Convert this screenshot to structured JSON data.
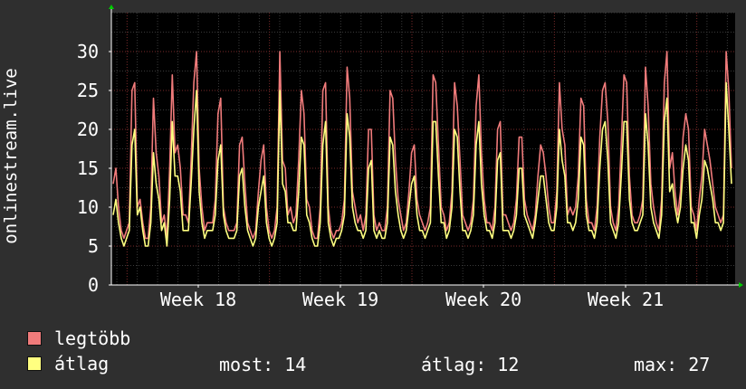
{
  "chart_data": {
    "type": "line",
    "ylabel": "onlinestream.live",
    "ylim": [
      0,
      35
    ],
    "yticks": [
      0,
      5,
      10,
      15,
      20,
      25,
      30
    ],
    "xticks": [
      "Week 18",
      "Week 19",
      "Week 20",
      "Week 21"
    ],
    "grid": true,
    "series": [
      {
        "name": "legtöbb",
        "color": "#f07b7b",
        "values": [
          13,
          15,
          10,
          7,
          6,
          7,
          8,
          25,
          26,
          10,
          11,
          8,
          6,
          6,
          10,
          24,
          17,
          14,
          8,
          9,
          6,
          15,
          27,
          17,
          18,
          15,
          9,
          9,
          8,
          16,
          26,
          30,
          15,
          10,
          7,
          8,
          8,
          8,
          11,
          22,
          24,
          10,
          8,
          7,
          7,
          7,
          8,
          18,
          19,
          13,
          8,
          7,
          6,
          7,
          12,
          16,
          18,
          10,
          7,
          6,
          7,
          10,
          30,
          16,
          15,
          9,
          10,
          8,
          9,
          16,
          25,
          22,
          11,
          10,
          7,
          6,
          6,
          10,
          25,
          26,
          10,
          7,
          6,
          7,
          7,
          8,
          11,
          28,
          24,
          12,
          10,
          8,
          9,
          7,
          9,
          20,
          20,
          9,
          7,
          8,
          7,
          7,
          10,
          25,
          24,
          16,
          11,
          9,
          7,
          8,
          12,
          17,
          18,
          11,
          9,
          8,
          7,
          8,
          10,
          27,
          26,
          18,
          10,
          9,
          7,
          8,
          12,
          26,
          23,
          16,
          9,
          8,
          7,
          8,
          11,
          23,
          27,
          17,
          11,
          8,
          8,
          7,
          10,
          20,
          21,
          9,
          9,
          8,
          7,
          8,
          11,
          19,
          19,
          11,
          9,
          8,
          7,
          9,
          14,
          18,
          17,
          14,
          10,
          8,
          8,
          12,
          26,
          20,
          18,
          9,
          10,
          9,
          10,
          14,
          24,
          23,
          11,
          8,
          8,
          7,
          10,
          19,
          25,
          26,
          21,
          10,
          8,
          7,
          10,
          18,
          27,
          26,
          14,
          9,
          8,
          8,
          9,
          11,
          28,
          23,
          13,
          10,
          8,
          7,
          11,
          26,
          30,
          15,
          17,
          12,
          9,
          12,
          19,
          22,
          20,
          10,
          9,
          7,
          11,
          14,
          20,
          18,
          16,
          13,
          10,
          9,
          8,
          9,
          30,
          25,
          15
        ]
      },
      {
        "name": "átlag",
        "color": "#ffff80",
        "values": [
          9,
          11,
          8,
          6,
          5,
          6,
          7,
          18,
          20,
          9,
          10,
          7,
          5,
          5,
          8,
          17,
          13,
          11,
          7,
          8,
          5,
          11,
          21,
          14,
          14,
          12,
          7,
          7,
          7,
          13,
          20,
          25,
          12,
          8,
          6,
          7,
          7,
          7,
          9,
          16,
          18,
          9,
          7,
          6,
          6,
          6,
          7,
          14,
          15,
          10,
          7,
          6,
          5,
          6,
          10,
          12,
          14,
          8,
          6,
          5,
          6,
          8,
          25,
          13,
          12,
          8,
          8,
          7,
          7,
          12,
          19,
          18,
          9,
          8,
          6,
          5,
          5,
          8,
          18,
          21,
          8,
          6,
          5,
          6,
          6,
          7,
          9,
          22,
          19,
          10,
          8,
          7,
          7,
          6,
          7,
          15,
          16,
          7,
          6,
          7,
          6,
          6,
          8,
          19,
          18,
          12,
          9,
          7,
          6,
          7,
          10,
          13,
          14,
          9,
          7,
          7,
          6,
          7,
          8,
          21,
          21,
          14,
          8,
          8,
          6,
          7,
          10,
          20,
          19,
          12,
          7,
          7,
          6,
          7,
          9,
          18,
          21,
          13,
          9,
          7,
          7,
          6,
          8,
          16,
          17,
          7,
          7,
          7,
          6,
          7,
          9,
          15,
          15,
          9,
          8,
          7,
          6,
          8,
          11,
          14,
          14,
          11,
          8,
          7,
          7,
          10,
          20,
          16,
          14,
          8,
          8,
          7,
          8,
          11,
          19,
          18,
          9,
          7,
          7,
          6,
          8,
          15,
          20,
          21,
          16,
          8,
          7,
          6,
          8,
          14,
          21,
          21,
          11,
          8,
          7,
          7,
          8,
          9,
          22,
          18,
          10,
          8,
          7,
          6,
          9,
          21,
          24,
          12,
          13,
          10,
          8,
          10,
          15,
          18,
          16,
          8,
          8,
          6,
          9,
          11,
          16,
          15,
          13,
          11,
          8,
          8,
          7,
          8,
          26,
          20,
          13
        ]
      }
    ],
    "legend": {
      "items": [
        {
          "label": "legtöbb",
          "color": "#f07b7b"
        },
        {
          "label": "átlag",
          "color": "#ffff80"
        }
      ],
      "stats": {
        "now_label": "most:",
        "now_value": "14",
        "avg_label": "átlag:",
        "avg_value": "12",
        "max_label": "max:",
        "max_value": "27"
      }
    }
  },
  "colors": {
    "background": "#2f2f2f",
    "plot_background": "#000000",
    "grid_minor": "#3a3a3a",
    "grid_major": "#7a2a2a",
    "axis": "#ffffff",
    "arrow": "#00cc00"
  }
}
